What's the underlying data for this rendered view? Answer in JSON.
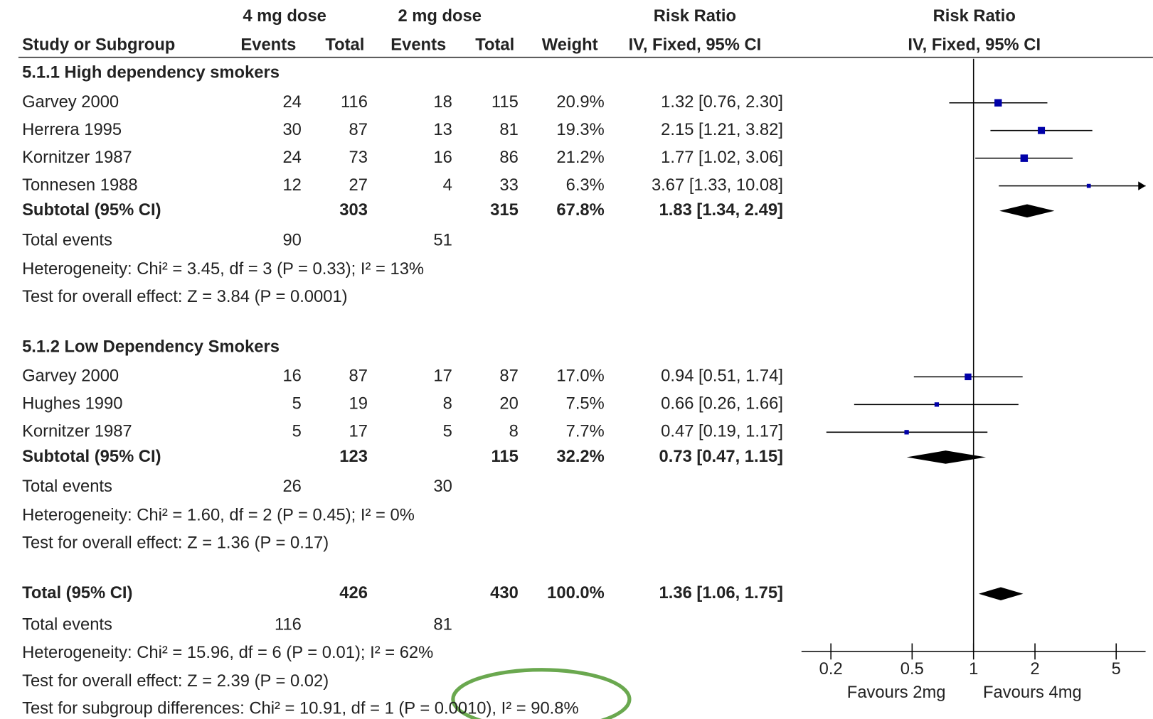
{
  "table": {
    "header": {
      "group1": "4 mg dose",
      "group2": "2 mg dose",
      "rr_text": "Risk Ratio",
      "rr_plot": "Risk Ratio",
      "study": "Study or Subgroup",
      "events1": "Events",
      "total1": "Total",
      "events2": "Events",
      "total2": "Total",
      "weight": "Weight",
      "method_text": "IV, Fixed, 95% CI",
      "method_plot": "IV, Fixed, 95% CI"
    },
    "subgroups": [
      {
        "heading": "5.1.1 High dependency smokers",
        "studies": [
          {
            "name": "Garvey 2000",
            "events1": "24",
            "total1": "116",
            "events2": "18",
            "total2": "115",
            "weight": "20.9%",
            "ci": "1.32 [0.76, 2.30]"
          },
          {
            "name": "Herrera 1995",
            "events1": "30",
            "total1": "87",
            "events2": "13",
            "total2": "81",
            "weight": "19.3%",
            "ci": "2.15 [1.21, 3.82]"
          },
          {
            "name": "Kornitzer 1987",
            "events1": "24",
            "total1": "73",
            "events2": "16",
            "total2": "86",
            "weight": "21.2%",
            "ci": "1.77 [1.02, 3.06]"
          },
          {
            "name": "Tonnesen 1988",
            "events1": "12",
            "total1": "27",
            "events2": "4",
            "total2": "33",
            "weight": "6.3%",
            "ci": "3.67 [1.33, 10.08]"
          }
        ],
        "subtotal": {
          "name": "Subtotal (95% CI)",
          "total1": "303",
          "total2": "315",
          "weight": "67.8%",
          "ci": "1.83 [1.34, 2.49]"
        },
        "total_events": {
          "name": "Total events",
          "events1": "90",
          "events2": "51"
        },
        "heterogeneity": "Heterogeneity: Chi² = 3.45, df = 3 (P = 0.33); I² = 13%",
        "overall": "Test for overall effect: Z = 3.84 (P = 0.0001)"
      },
      {
        "heading": "5.1.2 Low Dependency Smokers",
        "studies": [
          {
            "name": "Garvey 2000",
            "events1": "16",
            "total1": "87",
            "events2": "17",
            "total2": "87",
            "weight": "17.0%",
            "ci": "0.94 [0.51, 1.74]"
          },
          {
            "name": "Hughes 1990",
            "events1": "5",
            "total1": "19",
            "events2": "8",
            "total2": "20",
            "weight": "7.5%",
            "ci": "0.66 [0.26, 1.66]"
          },
          {
            "name": "Kornitzer 1987",
            "events1": "5",
            "total1": "17",
            "events2": "5",
            "total2": "8",
            "weight": "7.7%",
            "ci": "0.47 [0.19, 1.17]"
          }
        ],
        "subtotal": {
          "name": "Subtotal (95% CI)",
          "total1": "123",
          "total2": "115",
          "weight": "32.2%",
          "ci": "0.73 [0.47, 1.15]"
        },
        "total_events": {
          "name": "Total events",
          "events1": "26",
          "events2": "30"
        },
        "heterogeneity": "Heterogeneity: Chi² = 1.60, df = 2 (P = 0.45); I² = 0%",
        "overall": "Test for overall effect: Z = 1.36 (P = 0.17)"
      }
    ],
    "total": {
      "name": "Total (95% CI)",
      "total1": "426",
      "total2": "430",
      "weight": "100.0%",
      "ci": "1.36 [1.06, 1.75]"
    },
    "total_events": {
      "name": "Total events",
      "events1": "116",
      "events2": "81"
    },
    "heterogeneity": "Heterogeneity: Chi² = 15.96, df = 6 (P = 0.01); I² = 62%",
    "overall": "Test for overall effect: Z = 2.39 (P = 0.02)",
    "subgroup_test": "Test for subgroup differences: Chi² = 10.91, df = 1 (P = 0.0010), I² = 90.8%"
  },
  "chart_data": {
    "type": "forest",
    "log_scale": true,
    "xlim": [
      0.2,
      5
    ],
    "xticks": [
      0.2,
      0.5,
      1,
      2,
      5
    ],
    "reference": 1,
    "favours": [
      "Favours 2mg",
      "Favours 4mg"
    ],
    "marker_color": "#0000a8",
    "diamond_color": "#000000",
    "subgroups": [
      {
        "studies": [
          {
            "rr": 1.32,
            "lower": 0.76,
            "upper": 2.3,
            "weight": 20.9
          },
          {
            "rr": 2.15,
            "lower": 1.21,
            "upper": 3.82,
            "weight": 19.3
          },
          {
            "rr": 1.77,
            "lower": 1.02,
            "upper": 3.06,
            "weight": 21.2
          },
          {
            "rr": 3.67,
            "lower": 1.33,
            "upper": 10.08,
            "weight": 6.3
          }
        ],
        "subtotal": {
          "rr": 1.83,
          "lower": 1.34,
          "upper": 2.49
        }
      },
      {
        "studies": [
          {
            "rr": 0.94,
            "lower": 0.51,
            "upper": 1.74,
            "weight": 17.0
          },
          {
            "rr": 0.66,
            "lower": 0.26,
            "upper": 1.66,
            "weight": 7.5
          },
          {
            "rr": 0.47,
            "lower": 0.19,
            "upper": 1.17,
            "weight": 7.7
          }
        ],
        "subtotal": {
          "rr": 0.73,
          "lower": 0.47,
          "upper": 1.15
        }
      }
    ],
    "total": {
      "rr": 1.36,
      "lower": 1.06,
      "upper": 1.75
    }
  }
}
